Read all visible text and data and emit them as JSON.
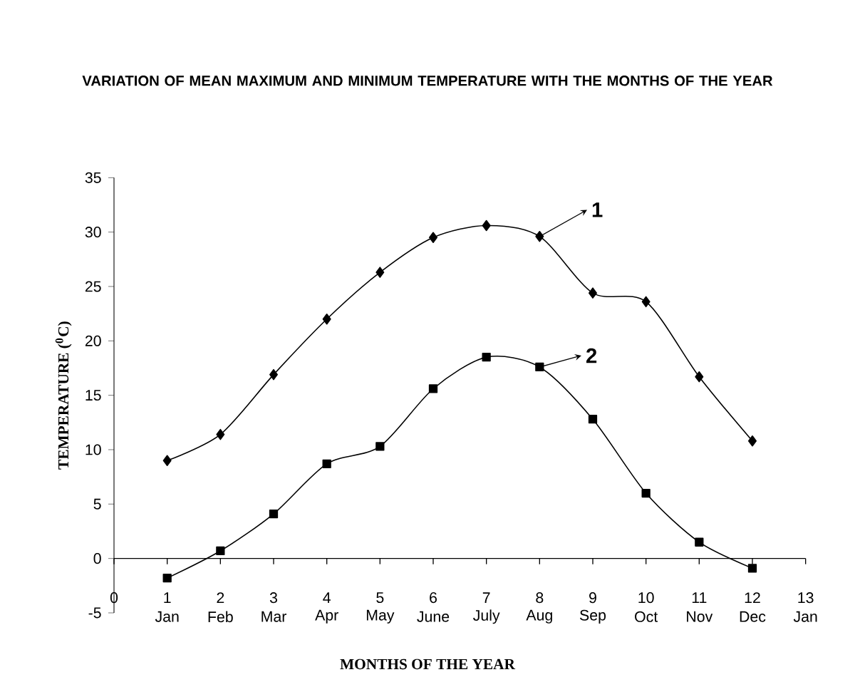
{
  "chart_data": {
    "type": "line",
    "title": "VARIATION OF MEAN MAXIMUM AND MINIMUM TEMPERATURE WITH THE MONTHS OF THE YEAR",
    "xlabel": "MONTHS OF THE YEAR",
    "ylabel": "TEMPERATURE ($^{0}$C)",
    "x": [
      1,
      2,
      3,
      4,
      5,
      6,
      7,
      8,
      9,
      10,
      11,
      12
    ],
    "series": [
      {
        "color": "#000000",
        "marker": "diamond",
        "values": [
          9,
          11.4,
          16.9,
          22,
          26.3,
          29.5,
          30.6,
          29.6,
          24.4,
          23.6,
          16.7,
          10.8
        ]
      },
      {
        "color": "#000000",
        "marker": "square",
        "values": [
          -1.8,
          0.7,
          4.1,
          8.7,
          10.3,
          15.6,
          18.5,
          17.6,
          12.8,
          6.0,
          1.5,
          -0.9
        ]
      }
    ],
    "xlim": [
      0,
      13
    ],
    "xticks": [
      0,
      1,
      2,
      3,
      4,
      5,
      6,
      7,
      8,
      9,
      10,
      11,
      12,
      13
    ],
    "ylim": [
      -5,
      35
    ],
    "yticks": [
      -5,
      0,
      5,
      10,
      15,
      20,
      25,
      30,
      35
    ],
    "line_style": "solid",
    "annotations": [
      {
        "text": "1",
        "x": 8,
        "y": 29.6
      },
      {
        "text": "2",
        "x": 8,
        "y": 17.6
      },
      "Jan",
      "Feb",
      "Mar",
      "Apr",
      "May",
      "June",
      "July",
      "Aug",
      "Sep",
      "Oct",
      "Nov",
      "Dec",
      "Jan"
    ]
  }
}
